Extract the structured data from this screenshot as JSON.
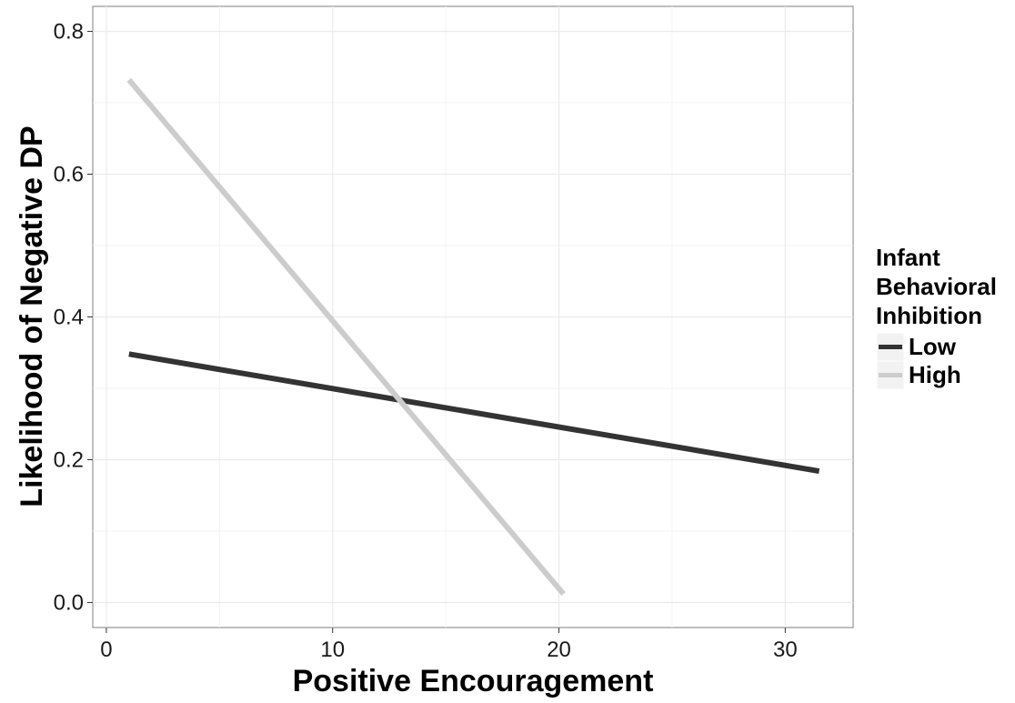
{
  "chart_data": {
    "type": "line",
    "xlabel": "Positive Encouragement",
    "ylabel": "Likelihood of Negative DP",
    "xlim": [
      -0.6,
      33.0
    ],
    "ylim": [
      -0.035,
      0.835
    ],
    "x_ticks": [
      0,
      10,
      20,
      30
    ],
    "x_tick_labels": [
      "0",
      "10",
      "20",
      "30"
    ],
    "y_ticks": [
      0.0,
      0.2,
      0.4,
      0.6,
      0.8
    ],
    "y_tick_labels": [
      "0.0",
      "0.2",
      "0.4",
      "0.6",
      "0.8"
    ],
    "grid": true,
    "legend": {
      "title_lines": [
        "Infant",
        "Behavioral",
        "Inhibition"
      ],
      "placement": "right"
    },
    "series": [
      {
        "name": "Low",
        "color": "#333333",
        "points": [
          [
            1,
            0.348
          ],
          [
            31.5,
            0.184
          ]
        ]
      },
      {
        "name": "High",
        "color": "#cccccc",
        "points": [
          [
            1,
            0.732
          ],
          [
            20.2,
            0.012
          ]
        ]
      }
    ]
  }
}
